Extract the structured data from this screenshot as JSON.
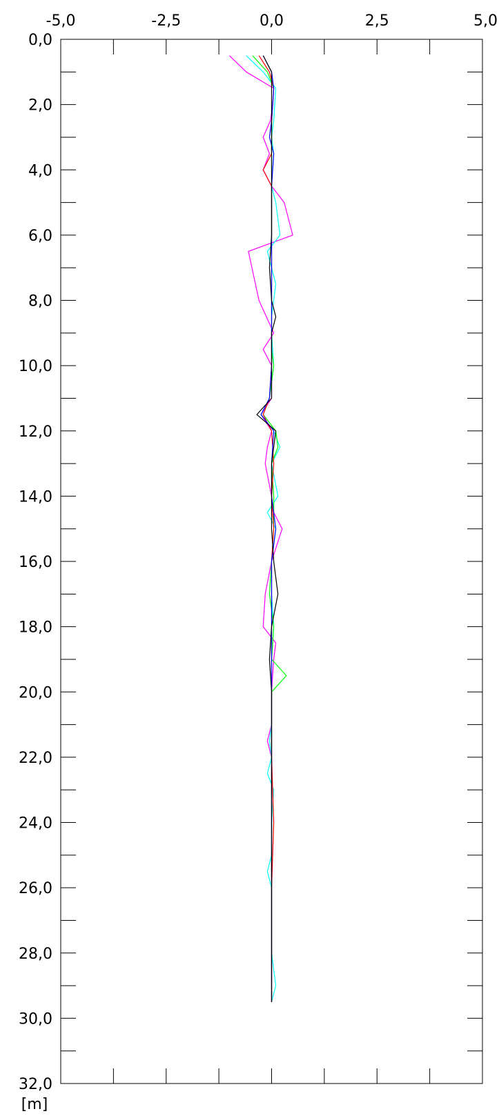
{
  "chart_data": {
    "type": "line",
    "title": "",
    "xlabel": "",
    "ylabel": "[m]",
    "xlim": [
      -5,
      5
    ],
    "ylim": [
      0,
      32
    ],
    "y_inverted": true,
    "x_ticks": [
      "-5,0",
      "-2,5",
      "0,0",
      "2,5",
      "5,0"
    ],
    "x_tick_values": [
      -5,
      -2.5,
      0,
      2.5,
      5
    ],
    "x_minor_ticks": [
      -3.75,
      -1.25,
      1.25,
      3.75
    ],
    "y_ticks": [
      "0,0",
      "2,0",
      "4,0",
      "6,0",
      "8,0",
      "10,0",
      "12,0",
      "14,0",
      "16,0",
      "18,0",
      "20,0",
      "22,0",
      "24,0",
      "26,0",
      "28,0",
      "30,0",
      "32,0"
    ],
    "y_tick_values": [
      0,
      2,
      4,
      6,
      8,
      10,
      12,
      14,
      16,
      18,
      20,
      22,
      24,
      26,
      28,
      30,
      32
    ],
    "y_minor_ticks": [
      1,
      3,
      5,
      7,
      9,
      11,
      13,
      15,
      17,
      19,
      21,
      23,
      25,
      27,
      29,
      31
    ],
    "grid": false,
    "legend": "none",
    "series": [
      {
        "color": "#ff00ff",
        "points": [
          [
            -1.0,
            0.5
          ],
          [
            -0.6,
            1.0
          ],
          [
            0.05,
            1.5
          ],
          [
            0.03,
            2.0
          ],
          [
            -0.03,
            2.5
          ],
          [
            -0.2,
            3.0
          ],
          [
            -0.05,
            3.5
          ],
          [
            -0.2,
            4.0
          ],
          [
            0.0,
            4.5
          ],
          [
            0.3,
            5.0
          ],
          [
            0.5,
            6.0
          ],
          [
            -0.55,
            6.5
          ],
          [
            -0.3,
            8.0
          ],
          [
            0.05,
            9.0
          ],
          [
            -0.2,
            9.5
          ],
          [
            0.0,
            10.0
          ],
          [
            0.0,
            11.0
          ],
          [
            -0.25,
            11.5
          ],
          [
            0.0,
            12.0
          ],
          [
            -0.1,
            12.5
          ],
          [
            -0.15,
            13.0
          ],
          [
            0.0,
            14.0
          ],
          [
            0.05,
            14.5
          ],
          [
            0.25,
            15.0
          ],
          [
            0.0,
            16.0
          ],
          [
            -0.15,
            17.0
          ],
          [
            -0.2,
            18.0
          ],
          [
            0.1,
            18.5
          ],
          [
            0.05,
            19.0
          ],
          [
            0.0,
            20.0
          ],
          [
            0.0,
            21.0
          ],
          [
            -0.1,
            21.5
          ],
          [
            0.0,
            22.0
          ],
          [
            0.0,
            24.0
          ],
          [
            0.0,
            26.0
          ],
          [
            0.0,
            28.0
          ],
          [
            0.0,
            29.5
          ]
        ]
      },
      {
        "color": "#00ffff",
        "points": [
          [
            -0.6,
            0.5
          ],
          [
            -0.2,
            1.0
          ],
          [
            0.1,
            1.5
          ],
          [
            0.05,
            2.5
          ],
          [
            0.0,
            3.0
          ],
          [
            0.05,
            3.5
          ],
          [
            0.0,
            4.5
          ],
          [
            0.1,
            5.0
          ],
          [
            0.2,
            6.0
          ],
          [
            -0.1,
            6.5
          ],
          [
            0.0,
            7.0
          ],
          [
            0.1,
            7.5
          ],
          [
            0.0,
            8.5
          ],
          [
            0.0,
            9.0
          ],
          [
            0.05,
            10.0
          ],
          [
            -0.05,
            11.0
          ],
          [
            -0.25,
            11.5
          ],
          [
            0.05,
            12.0
          ],
          [
            0.2,
            12.5
          ],
          [
            0.0,
            13.0
          ],
          [
            0.15,
            14.0
          ],
          [
            -0.1,
            14.5
          ],
          [
            0.1,
            15.0
          ],
          [
            0.0,
            16.0
          ],
          [
            0.0,
            17.0
          ],
          [
            0.05,
            18.0
          ],
          [
            0.0,
            19.0
          ],
          [
            0.0,
            20.0
          ],
          [
            0.0,
            21.0
          ],
          [
            -0.05,
            21.5
          ],
          [
            0.0,
            22.0
          ],
          [
            -0.1,
            22.5
          ],
          [
            0.05,
            23.0
          ],
          [
            0.0,
            24.0
          ],
          [
            0.0,
            25.0
          ],
          [
            -0.1,
            25.5
          ],
          [
            0.0,
            26.0
          ],
          [
            0.0,
            28.0
          ],
          [
            0.1,
            29.0
          ],
          [
            0.0,
            29.5
          ]
        ]
      },
      {
        "color": "#00ff00",
        "points": [
          [
            -0.45,
            0.5
          ],
          [
            -0.1,
            1.0
          ],
          [
            0.05,
            1.5
          ],
          [
            0.0,
            2.5
          ],
          [
            0.0,
            3.5
          ],
          [
            0.0,
            5.0
          ],
          [
            0.0,
            6.0
          ],
          [
            0.0,
            7.0
          ],
          [
            0.0,
            8.0
          ],
          [
            0.0,
            9.5
          ],
          [
            0.05,
            10.0
          ],
          [
            -0.05,
            11.0
          ],
          [
            -0.2,
            11.5
          ],
          [
            0.1,
            12.0
          ],
          [
            0.15,
            12.5
          ],
          [
            0.0,
            13.0
          ],
          [
            0.05,
            14.0
          ],
          [
            0.05,
            15.0
          ],
          [
            0.0,
            16.0
          ],
          [
            -0.05,
            17.0
          ],
          [
            0.05,
            18.0
          ],
          [
            0.0,
            19.0
          ],
          [
            0.35,
            19.5
          ],
          [
            0.0,
            20.0
          ],
          [
            0.0,
            20.5
          ],
          [
            0.0,
            21.5
          ],
          [
            0.0,
            22.0
          ],
          [
            0.0,
            24.0
          ],
          [
            0.0,
            26.0
          ],
          [
            0.0,
            28.0
          ],
          [
            0.0,
            29.5
          ]
        ]
      },
      {
        "color": "#ff0000",
        "points": [
          [
            -0.3,
            0.5
          ],
          [
            -0.05,
            1.0
          ],
          [
            0.05,
            1.5
          ],
          [
            0.0,
            2.5
          ],
          [
            0.0,
            3.5
          ],
          [
            -0.2,
            4.0
          ],
          [
            0.0,
            4.5
          ],
          [
            0.0,
            6.0
          ],
          [
            0.0,
            8.0
          ],
          [
            0.0,
            10.0
          ],
          [
            -0.05,
            11.0
          ],
          [
            -0.2,
            11.5
          ],
          [
            0.0,
            12.0
          ],
          [
            0.05,
            13.0
          ],
          [
            0.0,
            14.0
          ],
          [
            0.05,
            15.0
          ],
          [
            0.0,
            16.0
          ],
          [
            0.0,
            18.0
          ],
          [
            0.0,
            20.0
          ],
          [
            0.0,
            22.0
          ],
          [
            0.05,
            24.0
          ],
          [
            0.0,
            26.0
          ],
          [
            0.0,
            28.0
          ],
          [
            0.0,
            29.5
          ]
        ]
      },
      {
        "color": "#0000ff",
        "points": [
          [
            -0.2,
            0.5
          ],
          [
            0.0,
            1.0
          ],
          [
            0.05,
            1.5
          ],
          [
            0.0,
            2.5
          ],
          [
            -0.05,
            3.0
          ],
          [
            0.05,
            3.5
          ],
          [
            0.0,
            4.5
          ],
          [
            0.0,
            6.0
          ],
          [
            0.0,
            8.0
          ],
          [
            0.0,
            10.0
          ],
          [
            -0.05,
            11.0
          ],
          [
            -0.25,
            11.5
          ],
          [
            0.05,
            12.0
          ],
          [
            0.0,
            13.0
          ],
          [
            0.0,
            14.0
          ],
          [
            0.1,
            15.0
          ],
          [
            0.0,
            16.0
          ],
          [
            0.0,
            18.0
          ],
          [
            0.0,
            19.0
          ],
          [
            0.0,
            20.0
          ],
          [
            0.0,
            22.0
          ],
          [
            0.0,
            24.0
          ],
          [
            0.0,
            25.0
          ],
          [
            0.0,
            26.0
          ],
          [
            0.0,
            28.0
          ],
          [
            0.0,
            29.5
          ]
        ]
      },
      {
        "color": "#000000",
        "points": [
          [
            -0.2,
            0.5
          ],
          [
            0.0,
            1.0
          ],
          [
            0.0,
            1.5
          ],
          [
            0.0,
            3.0
          ],
          [
            0.0,
            4.5
          ],
          [
            0.0,
            6.0
          ],
          [
            -0.05,
            7.0
          ],
          [
            0.0,
            8.0
          ],
          [
            0.1,
            8.5
          ],
          [
            0.0,
            9.0
          ],
          [
            0.0,
            10.0
          ],
          [
            0.0,
            11.0
          ],
          [
            -0.35,
            11.5
          ],
          [
            0.1,
            12.0
          ],
          [
            0.0,
            13.0
          ],
          [
            0.0,
            14.0
          ],
          [
            0.0,
            15.0
          ],
          [
            0.05,
            16.0
          ],
          [
            0.15,
            17.0
          ],
          [
            0.0,
            18.0
          ],
          [
            -0.05,
            19.0
          ],
          [
            0.0,
            20.0
          ],
          [
            0.0,
            22.0
          ],
          [
            0.0,
            24.0
          ],
          [
            0.0,
            26.0
          ],
          [
            0.0,
            28.0
          ],
          [
            0.0,
            29.5
          ]
        ]
      }
    ]
  }
}
